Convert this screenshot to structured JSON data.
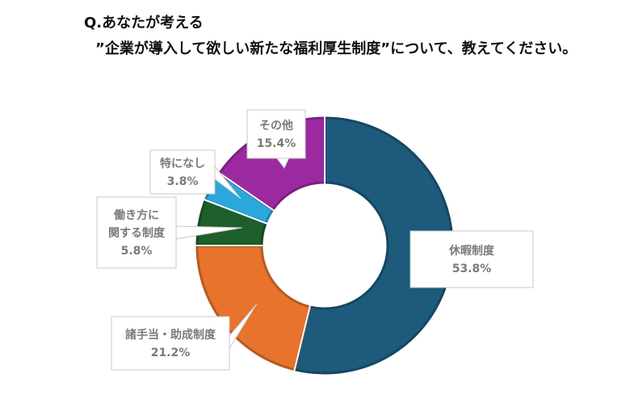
{
  "chart_data": {
    "type": "pie",
    "donut": true,
    "title_line1": "Q.あなたが考える",
    "title_line2": "”企業が導入して欲しい新たな福利厚生制度”について、教えてください。",
    "slices": [
      {
        "label_lines": [
          "休暇制度"
        ],
        "value": 53.8,
        "value_label": "53.8%",
        "color": "#1d5a7c"
      },
      {
        "label_lines": [
          "諸手当・助成制度"
        ],
        "value": 21.2,
        "value_label": "21.2%",
        "color": "#e8732c"
      },
      {
        "label_lines": [
          "働き方に",
          "関する制度"
        ],
        "value": 5.8,
        "value_label": "5.8%",
        "color": "#1e5e2a"
      },
      {
        "label_lines": [
          "特になし"
        ],
        "value": 3.8,
        "value_label": "3.8%",
        "color": "#2aa8dc"
      },
      {
        "label_lines": [
          "その他"
        ],
        "value": 15.4,
        "value_label": "15.4%",
        "color": "#9b2aa1"
      }
    ]
  }
}
